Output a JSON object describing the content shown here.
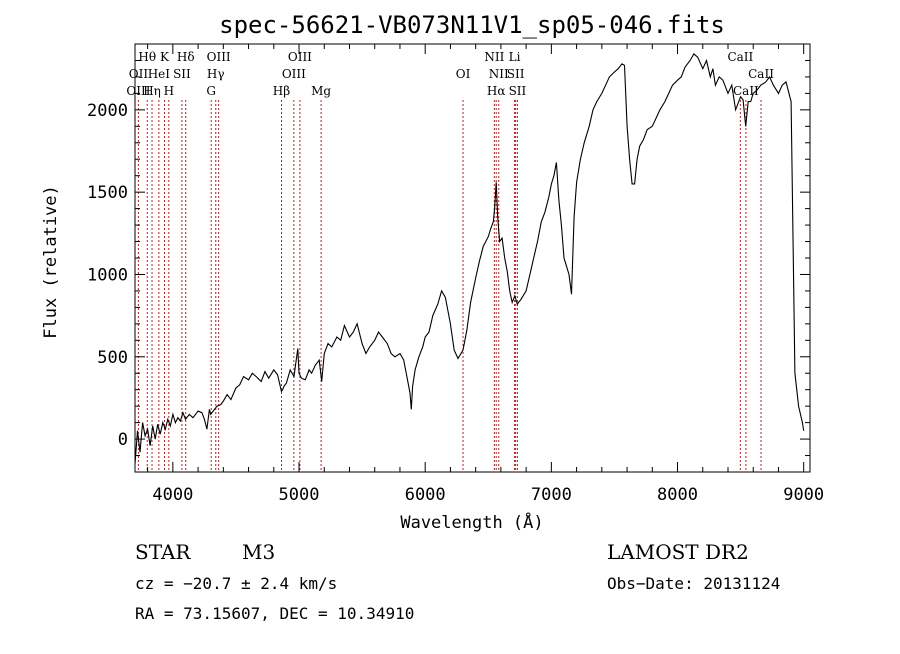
{
  "chart_data": {
    "type": "line",
    "title": "spec-56621-VB073N11V1_sp05-046.fits",
    "xlabel": "Wavelength (Å)",
    "ylabel": "Flux (relative)",
    "xlim": [
      3700,
      9050
    ],
    "ylim": [
      -200,
      2400
    ],
    "xticks": [
      4000,
      5000,
      6000,
      7000,
      8000,
      9000
    ],
    "yticks": [
      0,
      500,
      1000,
      1500,
      2000
    ],
    "x": [
      3700,
      3720,
      3740,
      3760,
      3780,
      3800,
      3820,
      3840,
      3860,
      3880,
      3900,
      3920,
      3940,
      3960,
      3980,
      4000,
      4020,
      4040,
      4060,
      4080,
      4100,
      4130,
      4160,
      4200,
      4230,
      4250,
      4270,
      4290,
      4300,
      4320,
      4350,
      4380,
      4400,
      4430,
      4460,
      4500,
      4530,
      4560,
      4600,
      4630,
      4660,
      4700,
      4730,
      4760,
      4800,
      4830,
      4860,
      4870,
      4880,
      4900,
      4930,
      4960,
      4990,
      5000,
      5020,
      5050,
      5080,
      5100,
      5130,
      5160,
      5180,
      5200,
      5230,
      5260,
      5300,
      5330,
      5360,
      5400,
      5430,
      5460,
      5500,
      5530,
      5560,
      5600,
      5630,
      5660,
      5700,
      5730,
      5760,
      5800,
      5830,
      5860,
      5880,
      5890,
      5900,
      5920,
      5950,
      5980,
      6000,
      6030,
      6060,
      6100,
      6130,
      6160,
      6180,
      6200,
      6230,
      6260,
      6300,
      6330,
      6360,
      6400,
      6430,
      6460,
      6500,
      6520,
      6540,
      6550,
      6563,
      6575,
      6590,
      6610,
      6630,
      6650,
      6670,
      6690,
      6710,
      6730,
      6760,
      6800,
      6830,
      6860,
      6890,
      6920,
      6950,
      6980,
      7000,
      7020,
      7040,
      7060,
      7080,
      7100,
      7120,
      7140,
      7160,
      7180,
      7200,
      7230,
      7260,
      7300,
      7330,
      7360,
      7400,
      7430,
      7460,
      7500,
      7530,
      7560,
      7580,
      7600,
      7620,
      7640,
      7660,
      7680,
      7700,
      7730,
      7760,
      7800,
      7830,
      7860,
      7900,
      7930,
      7960,
      8000,
      8030,
      8060,
      8100,
      8130,
      8160,
      8200,
      8230,
      8260,
      8280,
      8300,
      8330,
      8360,
      8400,
      8430,
      8460,
      8500,
      8520,
      8540,
      8560,
      8580,
      8600,
      8630,
      8660,
      8700,
      8730,
      8760,
      8800,
      8830,
      8860,
      8900,
      8930,
      8960,
      8990,
      9000
    ],
    "y": [
      -150,
      50,
      -80,
      100,
      20,
      60,
      -40,
      80,
      0,
      90,
      30,
      100,
      60,
      120,
      80,
      150,
      100,
      130,
      110,
      160,
      120,
      150,
      130,
      170,
      160,
      120,
      60,
      180,
      150,
      170,
      200,
      210,
      230,
      270,
      240,
      310,
      330,
      380,
      360,
      400,
      380,
      350,
      410,
      370,
      420,
      390,
      290,
      300,
      320,
      340,
      420,
      380,
      550,
      400,
      370,
      360,
      420,
      400,
      450,
      480,
      350,
      520,
      580,
      560,
      620,
      600,
      690,
      620,
      650,
      700,
      580,
      520,
      560,
      600,
      650,
      620,
      580,
      520,
      500,
      520,
      480,
      360,
      280,
      180,
      320,
      420,
      500,
      560,
      620,
      650,
      750,
      820,
      900,
      860,
      780,
      700,
      540,
      490,
      540,
      660,
      830,
      980,
      1080,
      1170,
      1230,
      1280,
      1320,
      1400,
      1560,
      1350,
      1200,
      1220,
      1100,
      1020,
      900,
      830,
      870,
      820,
      850,
      900,
      1000,
      1100,
      1200,
      1320,
      1380,
      1470,
      1550,
      1600,
      1680,
      1450,
      1300,
      1100,
      1050,
      1000,
      880,
      1350,
      1560,
      1700,
      1800,
      1900,
      2000,
      2050,
      2100,
      2150,
      2200,
      2230,
      2250,
      2280,
      2270,
      1900,
      1700,
      1550,
      1550,
      1700,
      1780,
      1820,
      1880,
      1900,
      1950,
      2000,
      2050,
      2100,
      2150,
      2180,
      2200,
      2260,
      2300,
      2340,
      2320,
      2250,
      2300,
      2200,
      2250,
      2150,
      2200,
      2180,
      2100,
      2150,
      2000,
      2080,
      2060,
      1900,
      2050,
      2050,
      2100,
      2120,
      2150,
      2170,
      2200,
      2150,
      2100,
      2150,
      2170,
      2050,
      400,
      200,
      100,
      50
    ],
    "spectral_lines": [
      {
        "label": "Hθ",
        "x": 3797,
        "row": 1
      },
      {
        "label": "OII",
        "x": 3727,
        "row": 2
      },
      {
        "label": "OIII",
        "x": 3727,
        "row": 3
      },
      {
        "label": "K",
        "x": 3934,
        "row": 1
      },
      {
        "label": "HeI",
        "x": 3889,
        "row": 2
      },
      {
        "label": "Hη",
        "x": 3835,
        "row": 3
      },
      {
        "label": "H",
        "x": 3968,
        "row": 3
      },
      {
        "label": "SII",
        "x": 4072,
        "row": 2
      },
      {
        "label": "Hδ",
        "x": 4102,
        "row": 1
      },
      {
        "label": "OIII",
        "x": 4363,
        "row": 1
      },
      {
        "label": "Hγ",
        "x": 4340,
        "row": 2
      },
      {
        "label": "G",
        "x": 4304,
        "row": 3
      },
      {
        "label": "Hβ",
        "x": 4861,
        "row": 3
      },
      {
        "label": "OIII",
        "x": 5007,
        "row": 1
      },
      {
        "label": "OIII",
        "x": 4959,
        "row": 2
      },
      {
        "label": "Mg",
        "x": 5175,
        "row": 3
      },
      {
        "label": "OI",
        "x": 6300,
        "row": 2
      },
      {
        "label": "NII",
        "x": 6548,
        "row": 1
      },
      {
        "label": "NII",
        "x": 6583,
        "row": 2
      },
      {
        "label": "Hα",
        "x": 6563,
        "row": 3
      },
      {
        "label": "Li",
        "x": 6708,
        "row": 1
      },
      {
        "label": "SII",
        "x": 6717,
        "row": 2
      },
      {
        "label": "SII",
        "x": 6731,
        "row": 3
      },
      {
        "label": "CaII",
        "x": 8498,
        "row": 1
      },
      {
        "label": "CaII",
        "x": 8542,
        "row": 3
      },
      {
        "label": "CaII",
        "x": 8662,
        "row": 2
      }
    ],
    "grid": false,
    "legend": "none"
  },
  "info": {
    "class": "STAR",
    "subclass": "M3",
    "survey": "LAMOST DR2",
    "cz": "cz = −20.7 ± 2.4 km/s",
    "obs_date": "Obs−Date: 20131124",
    "coords": "RA =  73.15607, DEC =  10.34910"
  }
}
